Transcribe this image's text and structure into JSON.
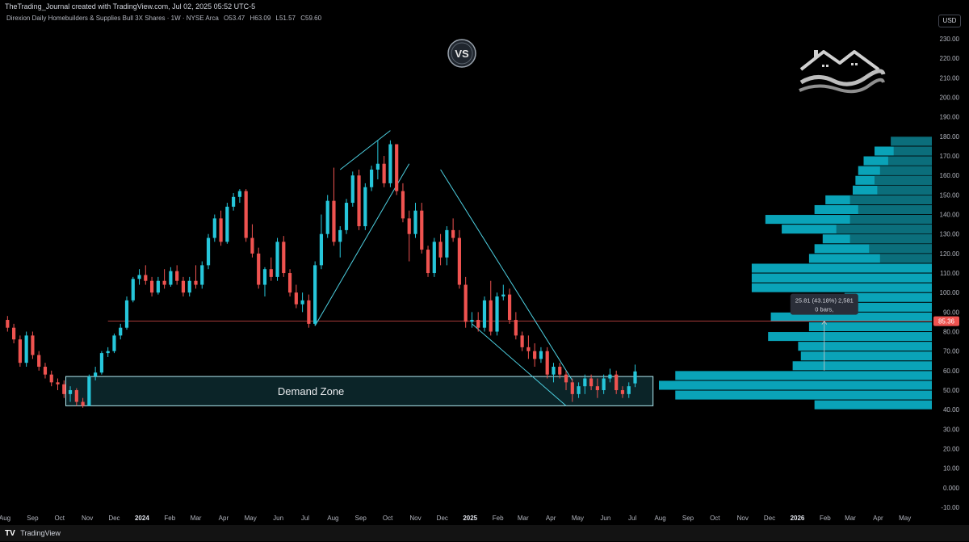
{
  "header": {
    "credit": "TheTrading_Journal created with TradingView.com, Jul 02, 2025 05:52 UTC-5",
    "symbol_title": "Direxion Daily Homebuilders & Supplies Bull 3X Shares · 1W · NYSE Arca",
    "open": "O53.47",
    "high": "H63.09",
    "low": "L51.57",
    "close": "C59.60",
    "currency": "USD"
  },
  "footer": {
    "brand": "TradingView"
  },
  "overlay": {
    "vs_logo": "VS",
    "demand_zone_label": "Demand Zone",
    "measure_line1": "25.81 (43.18%) 2,581",
    "measure_line2": "0 bars,",
    "last_price": "85.36"
  },
  "chart_data": {
    "type": "candlestick",
    "timeframe": "1W",
    "y_axis": {
      "min": -10,
      "max": 235,
      "ticks": [
        -10,
        0,
        10,
        20,
        30,
        40,
        50,
        60,
        70,
        80,
        90,
        100,
        110,
        120,
        130,
        140,
        150,
        160,
        170,
        180,
        190,
        200,
        210,
        220,
        230
      ],
      "tick_labels": [
        "-10.00",
        "0.000",
        "10.00",
        "20.00",
        "30.00",
        "40.00",
        "50.00",
        "60.00",
        "70.00",
        "80.00",
        "90.00",
        "100.00",
        "110.00",
        "120.00",
        "130.00",
        "140.00",
        "150.00",
        "160.00",
        "170.00",
        "180.00",
        "190.00",
        "200.00",
        "210.00",
        "220.00",
        "230.00"
      ]
    },
    "x_axis": {
      "start": "2023-08-01",
      "end": "2026-05-31",
      "ticks": [
        {
          "label": "Aug",
          "date": "2023-08-01"
        },
        {
          "label": "Sep",
          "date": "2023-09-01"
        },
        {
          "label": "Oct",
          "date": "2023-10-01"
        },
        {
          "label": "Nov",
          "date": "2023-11-01"
        },
        {
          "label": "Dec",
          "date": "2023-12-01"
        },
        {
          "label": "2024",
          "date": "2024-01-01",
          "bold": true
        },
        {
          "label": "Feb",
          "date": "2024-02-01"
        },
        {
          "label": "Mar",
          "date": "2024-03-01"
        },
        {
          "label": "Apr",
          "date": "2024-04-01"
        },
        {
          "label": "May",
          "date": "2024-05-01"
        },
        {
          "label": "Jun",
          "date": "2024-06-01"
        },
        {
          "label": "Jul",
          "date": "2024-07-01"
        },
        {
          "label": "Aug",
          "date": "2024-08-01"
        },
        {
          "label": "Sep",
          "date": "2024-09-01"
        },
        {
          "label": "Oct",
          "date": "2024-10-01"
        },
        {
          "label": "Nov",
          "date": "2024-11-01"
        },
        {
          "label": "Dec",
          "date": "2024-12-01"
        },
        {
          "label": "2025",
          "date": "2025-01-01",
          "bold": true
        },
        {
          "label": "Feb",
          "date": "2025-02-01"
        },
        {
          "label": "Mar",
          "date": "2025-03-01"
        },
        {
          "label": "Apr",
          "date": "2025-04-01"
        },
        {
          "label": "May",
          "date": "2025-05-01"
        },
        {
          "label": "Jun",
          "date": "2025-06-01"
        },
        {
          "label": "Jul",
          "date": "2025-07-01"
        },
        {
          "label": "Aug",
          "date": "2025-08-01"
        },
        {
          "label": "Sep",
          "date": "2025-09-01"
        },
        {
          "label": "Oct",
          "date": "2025-10-01"
        },
        {
          "label": "Nov",
          "date": "2025-11-01"
        },
        {
          "label": "Dec",
          "date": "2025-12-01"
        },
        {
          "label": "2026",
          "date": "2026-01-01",
          "bold": true
        },
        {
          "label": "Feb",
          "date": "2026-02-01"
        },
        {
          "label": "Mar",
          "date": "2026-03-01"
        },
        {
          "label": "Apr",
          "date": "2026-04-01"
        },
        {
          "label": "May",
          "date": "2026-05-01"
        }
      ]
    },
    "candles": [
      {
        "t": "2023-08-04",
        "o": 86,
        "h": 88,
        "l": 80,
        "c": 82
      },
      {
        "t": "2023-08-11",
        "o": 82,
        "h": 84,
        "l": 74,
        "c": 76
      },
      {
        "t": "2023-08-18",
        "o": 76,
        "h": 78,
        "l": 62,
        "c": 64
      },
      {
        "t": "2023-08-25",
        "o": 64,
        "h": 80,
        "l": 62,
        "c": 78
      },
      {
        "t": "2023-09-01",
        "o": 78,
        "h": 80,
        "l": 66,
        "c": 68
      },
      {
        "t": "2023-09-08",
        "o": 68,
        "h": 70,
        "l": 60,
        "c": 62
      },
      {
        "t": "2023-09-15",
        "o": 62,
        "h": 64,
        "l": 56,
        "c": 58
      },
      {
        "t": "2023-09-22",
        "o": 58,
        "h": 60,
        "l": 52,
        "c": 54
      },
      {
        "t": "2023-09-29",
        "o": 54,
        "h": 56,
        "l": 50,
        "c": 53
      },
      {
        "t": "2023-10-06",
        "o": 53,
        "h": 55,
        "l": 46,
        "c": 48
      },
      {
        "t": "2023-10-13",
        "o": 48,
        "h": 52,
        "l": 44,
        "c": 50
      },
      {
        "t": "2023-10-20",
        "o": 50,
        "h": 51,
        "l": 42,
        "c": 44
      },
      {
        "t": "2023-10-27",
        "o": 44,
        "h": 46,
        "l": 41,
        "c": 42
      },
      {
        "t": "2023-11-03",
        "o": 42,
        "h": 58,
        "l": 42,
        "c": 57
      },
      {
        "t": "2023-11-10",
        "o": 57,
        "h": 62,
        "l": 55,
        "c": 59
      },
      {
        "t": "2023-11-17",
        "o": 59,
        "h": 70,
        "l": 58,
        "c": 69
      },
      {
        "t": "2023-11-24",
        "o": 69,
        "h": 72,
        "l": 67,
        "c": 70
      },
      {
        "t": "2023-12-01",
        "o": 70,
        "h": 79,
        "l": 69,
        "c": 78
      },
      {
        "t": "2023-12-08",
        "o": 78,
        "h": 84,
        "l": 76,
        "c": 82
      },
      {
        "t": "2023-12-15",
        "o": 82,
        "h": 98,
        "l": 81,
        "c": 96
      },
      {
        "t": "2023-12-22",
        "o": 96,
        "h": 108,
        "l": 95,
        "c": 107
      },
      {
        "t": "2023-12-29",
        "o": 107,
        "h": 112,
        "l": 104,
        "c": 109
      },
      {
        "t": "2024-01-05",
        "o": 109,
        "h": 114,
        "l": 104,
        "c": 106
      },
      {
        "t": "2024-01-12",
        "o": 106,
        "h": 108,
        "l": 98,
        "c": 100
      },
      {
        "t": "2024-01-19",
        "o": 100,
        "h": 108,
        "l": 99,
        "c": 106
      },
      {
        "t": "2024-01-26",
        "o": 106,
        "h": 112,
        "l": 102,
        "c": 104
      },
      {
        "t": "2024-02-02",
        "o": 104,
        "h": 113,
        "l": 103,
        "c": 111
      },
      {
        "t": "2024-02-09",
        "o": 111,
        "h": 114,
        "l": 104,
        "c": 106
      },
      {
        "t": "2024-02-16",
        "o": 106,
        "h": 108,
        "l": 98,
        "c": 100
      },
      {
        "t": "2024-02-23",
        "o": 100,
        "h": 108,
        "l": 98,
        "c": 106
      },
      {
        "t": "2024-03-01",
        "o": 106,
        "h": 114,
        "l": 102,
        "c": 104
      },
      {
        "t": "2024-03-08",
        "o": 104,
        "h": 116,
        "l": 102,
        "c": 114
      },
      {
        "t": "2024-03-15",
        "o": 114,
        "h": 130,
        "l": 112,
        "c": 128
      },
      {
        "t": "2024-03-22",
        "o": 128,
        "h": 140,
        "l": 126,
        "c": 138
      },
      {
        "t": "2024-03-29",
        "o": 138,
        "h": 142,
        "l": 124,
        "c": 126
      },
      {
        "t": "2024-04-05",
        "o": 126,
        "h": 146,
        "l": 125,
        "c": 144
      },
      {
        "t": "2024-04-12",
        "o": 144,
        "h": 151,
        "l": 142,
        "c": 149
      },
      {
        "t": "2024-04-19",
        "o": 149,
        "h": 153,
        "l": 146,
        "c": 152
      },
      {
        "t": "2024-04-26",
        "o": 152,
        "h": 153,
        "l": 126,
        "c": 128
      },
      {
        "t": "2024-05-03",
        "o": 128,
        "h": 135,
        "l": 118,
        "c": 120
      },
      {
        "t": "2024-05-10",
        "o": 120,
        "h": 123,
        "l": 102,
        "c": 104
      },
      {
        "t": "2024-05-17",
        "o": 104,
        "h": 113,
        "l": 98,
        "c": 112
      },
      {
        "t": "2024-05-24",
        "o": 112,
        "h": 118,
        "l": 106,
        "c": 108
      },
      {
        "t": "2024-05-31",
        "o": 108,
        "h": 128,
        "l": 106,
        "c": 126
      },
      {
        "t": "2024-06-07",
        "o": 126,
        "h": 129,
        "l": 108,
        "c": 110
      },
      {
        "t": "2024-06-14",
        "o": 110,
        "h": 112,
        "l": 98,
        "c": 100
      },
      {
        "t": "2024-06-21",
        "o": 100,
        "h": 104,
        "l": 92,
        "c": 94
      },
      {
        "t": "2024-06-28",
        "o": 94,
        "h": 100,
        "l": 90,
        "c": 96
      },
      {
        "t": "2024-07-05",
        "o": 96,
        "h": 99,
        "l": 82,
        "c": 84
      },
      {
        "t": "2024-07-12",
        "o": 84,
        "h": 116,
        "l": 83,
        "c": 114
      },
      {
        "t": "2024-07-19",
        "o": 114,
        "h": 140,
        "l": 112,
        "c": 130
      },
      {
        "t": "2024-07-26",
        "o": 130,
        "h": 150,
        "l": 128,
        "c": 147
      },
      {
        "t": "2024-08-02",
        "o": 147,
        "h": 164,
        "l": 124,
        "c": 126
      },
      {
        "t": "2024-08-09",
        "o": 126,
        "h": 134,
        "l": 118,
        "c": 132
      },
      {
        "t": "2024-08-16",
        "o": 132,
        "h": 148,
        "l": 130,
        "c": 146
      },
      {
        "t": "2024-08-23",
        "o": 146,
        "h": 162,
        "l": 144,
        "c": 160
      },
      {
        "t": "2024-08-30",
        "o": 160,
        "h": 163,
        "l": 132,
        "c": 134
      },
      {
        "t": "2024-09-06",
        "o": 134,
        "h": 156,
        "l": 132,
        "c": 154
      },
      {
        "t": "2024-09-13",
        "o": 154,
        "h": 165,
        "l": 152,
        "c": 163
      },
      {
        "t": "2024-09-20",
        "o": 163,
        "h": 178,
        "l": 158,
        "c": 166
      },
      {
        "t": "2024-09-27",
        "o": 166,
        "h": 170,
        "l": 154,
        "c": 156
      },
      {
        "t": "2024-10-04",
        "o": 156,
        "h": 178,
        "l": 154,
        "c": 176
      },
      {
        "t": "2024-10-11",
        "o": 176,
        "h": 176,
        "l": 150,
        "c": 152
      },
      {
        "t": "2024-10-18",
        "o": 152,
        "h": 156,
        "l": 136,
        "c": 138
      },
      {
        "t": "2024-10-25",
        "o": 138,
        "h": 142,
        "l": 116,
        "c": 130
      },
      {
        "t": "2024-11-01",
        "o": 130,
        "h": 146,
        "l": 128,
        "c": 142
      },
      {
        "t": "2024-11-08",
        "o": 142,
        "h": 146,
        "l": 120,
        "c": 122
      },
      {
        "t": "2024-11-15",
        "o": 122,
        "h": 124,
        "l": 108,
        "c": 110
      },
      {
        "t": "2024-11-22",
        "o": 110,
        "h": 128,
        "l": 108,
        "c": 126
      },
      {
        "t": "2024-11-29",
        "o": 126,
        "h": 130,
        "l": 114,
        "c": 118
      },
      {
        "t": "2024-12-06",
        "o": 118,
        "h": 134,
        "l": 114,
        "c": 132
      },
      {
        "t": "2024-12-13",
        "o": 132,
        "h": 138,
        "l": 126,
        "c": 128
      },
      {
        "t": "2024-12-20",
        "o": 128,
        "h": 132,
        "l": 102,
        "c": 104
      },
      {
        "t": "2024-12-27",
        "o": 104,
        "h": 108,
        "l": 82,
        "c": 85
      },
      {
        "t": "2025-01-03",
        "o": 85,
        "h": 90,
        "l": 82,
        "c": 86
      },
      {
        "t": "2025-01-10",
        "o": 86,
        "h": 90,
        "l": 80,
        "c": 82
      },
      {
        "t": "2025-01-17",
        "o": 82,
        "h": 98,
        "l": 80,
        "c": 96
      },
      {
        "t": "2025-01-24",
        "o": 96,
        "h": 106,
        "l": 78,
        "c": 80
      },
      {
        "t": "2025-01-31",
        "o": 80,
        "h": 100,
        "l": 78,
        "c": 98
      },
      {
        "t": "2025-02-07",
        "o": 98,
        "h": 104,
        "l": 96,
        "c": 99
      },
      {
        "t": "2025-02-14",
        "o": 99,
        "h": 102,
        "l": 84,
        "c": 86
      },
      {
        "t": "2025-02-21",
        "o": 86,
        "h": 90,
        "l": 76,
        "c": 78
      },
      {
        "t": "2025-02-28",
        "o": 78,
        "h": 80,
        "l": 70,
        "c": 72
      },
      {
        "t": "2025-03-07",
        "o": 72,
        "h": 78,
        "l": 66,
        "c": 70
      },
      {
        "t": "2025-03-14",
        "o": 70,
        "h": 74,
        "l": 62,
        "c": 66
      },
      {
        "t": "2025-03-21",
        "o": 66,
        "h": 72,
        "l": 64,
        "c": 70
      },
      {
        "t": "2025-03-28",
        "o": 70,
        "h": 72,
        "l": 56,
        "c": 58
      },
      {
        "t": "2025-04-04",
        "o": 58,
        "h": 64,
        "l": 54,
        "c": 62
      },
      {
        "t": "2025-04-11",
        "o": 62,
        "h": 64,
        "l": 56,
        "c": 58
      },
      {
        "t": "2025-04-18",
        "o": 58,
        "h": 60,
        "l": 50,
        "c": 54
      },
      {
        "t": "2025-04-25",
        "o": 54,
        "h": 56,
        "l": 44,
        "c": 48
      },
      {
        "t": "2025-05-02",
        "o": 48,
        "h": 54,
        "l": 46,
        "c": 52
      },
      {
        "t": "2025-05-09",
        "o": 52,
        "h": 58,
        "l": 48,
        "c": 56
      },
      {
        "t": "2025-05-16",
        "o": 56,
        "h": 58,
        "l": 50,
        "c": 52
      },
      {
        "t": "2025-05-23",
        "o": 52,
        "h": 56,
        "l": 46,
        "c": 50
      },
      {
        "t": "2025-05-30",
        "o": 50,
        "h": 58,
        "l": 48,
        "c": 56
      },
      {
        "t": "2025-06-06",
        "o": 56,
        "h": 61,
        "l": 54,
        "c": 58
      },
      {
        "t": "2025-06-13",
        "o": 58,
        "h": 60,
        "l": 48,
        "c": 50
      },
      {
        "t": "2025-06-20",
        "o": 50,
        "h": 52,
        "l": 46,
        "c": 48
      },
      {
        "t": "2025-06-27",
        "o": 48,
        "h": 54,
        "l": 46,
        "c": 52
      },
      {
        "t": "2025-07-04",
        "o": 53.47,
        "h": 63.09,
        "l": 51.57,
        "c": 59.6
      }
    ],
    "demand_zone": {
      "from": "2023-10-08",
      "to": "2025-07-24",
      "low": 42,
      "high": 57
    },
    "horizontal_line": {
      "value": 85.36,
      "from": "2023-11-24"
    },
    "trendlines": [
      {
        "name": "wedge-upper",
        "from": {
          "t": "2024-08-09",
          "v": 163
        },
        "to": {
          "t": "2024-10-04",
          "v": 183
        }
      },
      {
        "name": "wedge-lower",
        "from": {
          "t": "2024-07-12",
          "v": 83
        },
        "to": {
          "t": "2024-10-25",
          "v": 166
        }
      },
      {
        "name": "channel-upper",
        "from": {
          "t": "2024-11-29",
          "v": 163
        },
        "to": {
          "t": "2025-04-25",
          "v": 55
        }
      },
      {
        "name": "channel-lower",
        "from": {
          "t": "2025-01-03",
          "v": 84
        },
        "to": {
          "t": "2025-04-18",
          "v": 42
        }
      }
    ],
    "measure_arrow": {
      "t": "2026-01-31",
      "from": 60,
      "to": 85.36
    },
    "volume_profile": {
      "right_edge": "2026-05-31",
      "bin_size": 5,
      "bins": [
        {
          "p": 175,
          "w": 0.15,
          "dark": 0.15
        },
        {
          "p": 170,
          "w": 0.21,
          "dark": 0.14
        },
        {
          "p": 165,
          "w": 0.25,
          "dark": 0.16
        },
        {
          "p": 160,
          "w": 0.27,
          "dark": 0.19
        },
        {
          "p": 155,
          "w": 0.28,
          "dark": 0.21
        },
        {
          "p": 150,
          "w": 0.29,
          "dark": 0.2
        },
        {
          "p": 145,
          "w": 0.39,
          "dark": 0.3
        },
        {
          "p": 140,
          "w": 0.43,
          "dark": 0.27
        },
        {
          "p": 135,
          "w": 0.61,
          "dark": 0.3
        },
        {
          "p": 130,
          "w": 0.55,
          "dark": 0.35
        },
        {
          "p": 125,
          "w": 0.4,
          "dark": 0.3
        },
        {
          "p": 120,
          "w": 0.43,
          "dark": 0.23
        },
        {
          "p": 115,
          "w": 0.45,
          "dark": 0.19
        },
        {
          "p": 110,
          "w": 0.66,
          "dark": 0
        },
        {
          "p": 105,
          "w": 0.66,
          "dark": 0
        },
        {
          "p": 100,
          "w": 0.66,
          "dark": 0
        },
        {
          "p": 95,
          "w": 0.32,
          "dark": 0
        },
        {
          "p": 90,
          "w": 0.39,
          "dark": 0
        },
        {
          "p": 85,
          "w": 0.59,
          "dark": 0
        },
        {
          "p": 80,
          "w": 0.45,
          "dark": 0
        },
        {
          "p": 75,
          "w": 0.6,
          "dark": 0
        },
        {
          "p": 70,
          "w": 0.49,
          "dark": 0
        },
        {
          "p": 65,
          "w": 0.48,
          "dark": 0
        },
        {
          "p": 60,
          "w": 0.51,
          "dark": 0
        },
        {
          "p": 55,
          "w": 0.94,
          "dark": 0
        },
        {
          "p": 50,
          "w": 1.0,
          "dark": 0
        },
        {
          "p": 45,
          "w": 0.94,
          "dark": 0
        },
        {
          "p": 40,
          "w": 0.43,
          "dark": 0
        }
      ]
    },
    "colors": {
      "up": "#26c6da",
      "down": "#ef5350",
      "zone_border": "#b2ebf2",
      "zone_fill": "#0d2a2f",
      "trendline": "#4dd0e1",
      "hline": "#ef5350",
      "profile": "#0aa3b8",
      "profile_dark": "#0b6e7b",
      "price_tag": "#ef5350"
    }
  }
}
